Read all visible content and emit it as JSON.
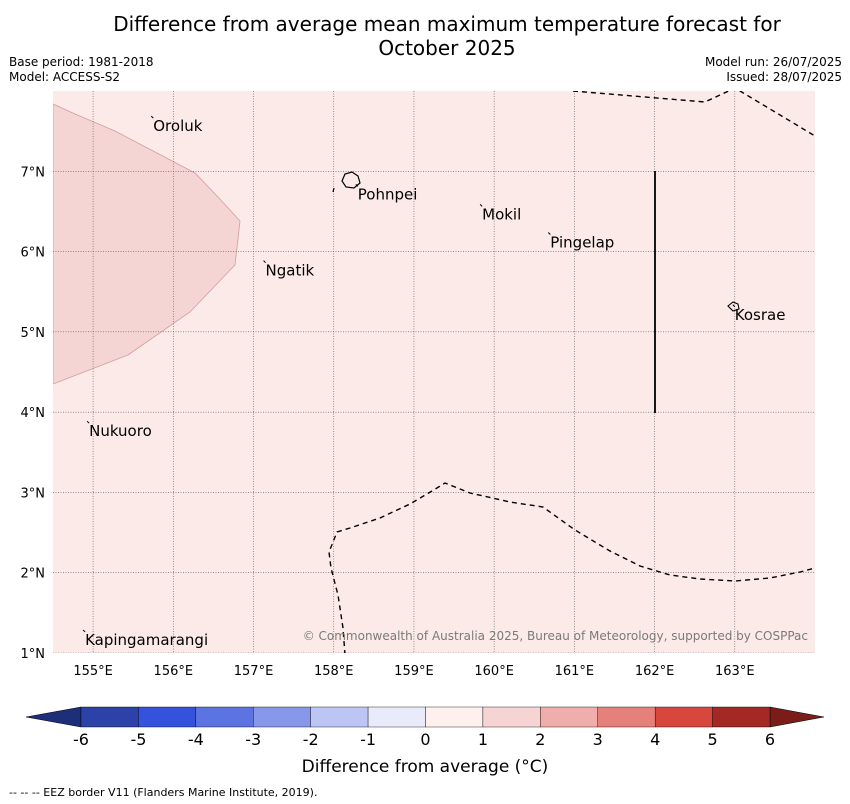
{
  "title_line1": "Difference from average mean maximum temperature forecast for",
  "title_line2": "October 2025",
  "meta_left": {
    "base_period": "Base period: 1981-2018",
    "model": "Model: ACCESS-S2"
  },
  "meta_right": {
    "model_run": "Model run: 26/07/2025",
    "issued": "Issued: 28/07/2025"
  },
  "map": {
    "lon_range": [
      154.5,
      164.0
    ],
    "lat_range": [
      1.0,
      8.0
    ],
    "background_fill_color": "#fbeae8",
    "anomaly_region_color": "#f4d5d4",
    "anomaly_region_stroke": "#d49c9a",
    "lon_ticks": [
      155,
      156,
      157,
      158,
      159,
      160,
      161,
      162,
      163
    ],
    "lon_labels": [
      "155°E",
      "156°E",
      "157°E",
      "158°E",
      "159°E",
      "160°E",
      "161°E",
      "162°E",
      "163°E"
    ],
    "lat_ticks": [
      1,
      2,
      3,
      4,
      5,
      6,
      7
    ],
    "lat_labels": [
      "1°N",
      "2°N",
      "3°N",
      "4°N",
      "5°N",
      "6°N",
      "7°N"
    ],
    "places": [
      {
        "name": "Oroluk",
        "lon": 155.75,
        "lat": 7.65
      },
      {
        "name": "Pohnpei",
        "lon": 158.3,
        "lat": 6.8
      },
      {
        "name": "Mokil",
        "lon": 159.85,
        "lat": 6.55
      },
      {
        "name": "Pingelap",
        "lon": 160.7,
        "lat": 6.2
      },
      {
        "name": "Ngatik",
        "lon": 157.15,
        "lat": 5.85
      },
      {
        "name": "Kosrae",
        "lon": 163.0,
        "lat": 5.3
      },
      {
        "name": "Nukuoro",
        "lon": 154.95,
        "lat": 3.85
      },
      {
        "name": "Kapingamarangi",
        "lon": 154.9,
        "lat": 1.25
      }
    ],
    "copyright": "© Commonwealth of Australia 2025, Bureau of Meteorology, supported by COSPPac"
  },
  "colorbar": {
    "ticks": [
      "-6",
      "-5",
      "-4",
      "-3",
      "-2",
      "-1",
      "0",
      "1",
      "2",
      "3",
      "4",
      "5",
      "6"
    ],
    "colors": [
      "#2c42a9",
      "#3552dd",
      "#5b74e2",
      "#8797ea",
      "#bcc5f3",
      "#e9ebfb",
      "#fdf0ee",
      "#f6d4d4",
      "#efaeab",
      "#e6807a",
      "#d8473d",
      "#a42924"
    ],
    "under_color": "#1d2f78",
    "over_color": "#7a1c1a",
    "label": "Difference from average (°C)"
  },
  "footnote": "--  --  -- EEZ border V11 (Flanders Marine Institute, 2019)."
}
